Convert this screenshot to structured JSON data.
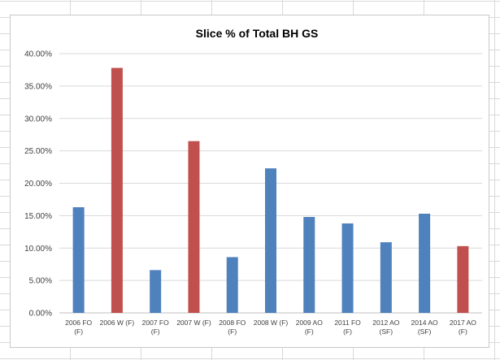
{
  "chart_data": {
    "type": "bar",
    "title": "Slice %  of Total BH GS",
    "categories": [
      [
        "2006 FO",
        "(F)"
      ],
      [
        "2006 W (F)"
      ],
      [
        "2007 FO",
        "(F)"
      ],
      [
        "2007 W (F)"
      ],
      [
        "2008 FO",
        "(F)"
      ],
      [
        "2008 W (F)"
      ],
      [
        "2009 AO",
        "(F)"
      ],
      [
        "2011 FO",
        "(F)"
      ],
      [
        "2012 AO",
        "(SF)"
      ],
      [
        "2014 AO",
        "(SF)"
      ],
      [
        "2017 AO",
        "(F)"
      ]
    ],
    "values": [
      16.3,
      37.8,
      6.6,
      26.5,
      8.6,
      22.3,
      14.8,
      13.8,
      10.9,
      15.3,
      10.3
    ],
    "bar_colors": [
      "#4f81bd",
      "#c0504d",
      "#4f81bd",
      "#c0504d",
      "#4f81bd",
      "#4f81bd",
      "#4f81bd",
      "#4f81bd",
      "#4f81bd",
      "#4f81bd",
      "#c0504d"
    ],
    "ylim": [
      0,
      40
    ],
    "yticks": [
      "0.00%",
      "5.00%",
      "10.00%",
      "15.00%",
      "20.00%",
      "25.00%",
      "30.00%",
      "35.00%",
      "40.00%"
    ],
    "xlabel": "",
    "ylabel": "",
    "grid": true,
    "legend": "none",
    "colors": {
      "gridline": "#d9d9d9",
      "axis": "#bfbfbf"
    }
  }
}
